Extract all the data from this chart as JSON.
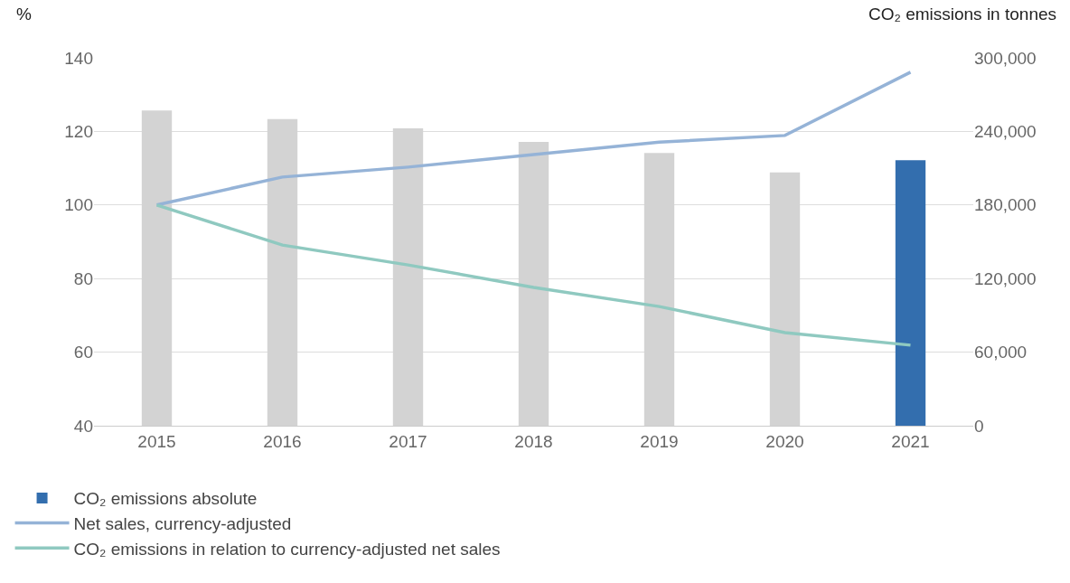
{
  "chart_data": {
    "type": "bar",
    "categories": [
      "2015",
      "2016",
      "2017",
      "2018",
      "2019",
      "2020",
      "2021"
    ],
    "ylabel": "%",
    "y2label": "CO₂ emissions in tonnes",
    "ylim": [
      40,
      140
    ],
    "yticks": [
      40,
      60,
      80,
      100,
      120,
      140
    ],
    "y2lim": [
      0,
      300000
    ],
    "y2ticks": [
      {
        "value": 0,
        "label": "0"
      },
      {
        "value": 60000,
        "label": "60,000"
      },
      {
        "value": 120000,
        "label": "120,000"
      },
      {
        "value": 180000,
        "label": "180,000"
      },
      {
        "value": 240000,
        "label": "240,000"
      },
      {
        "value": 300000,
        "label": "300,000"
      }
    ],
    "grid": "y",
    "legend": "bottom",
    "marker": "none",
    "line_style": "solid",
    "series": [
      {
        "name": "CO₂ emissions absolute",
        "axis": "y2",
        "color": "#336eae",
        "colors": [
          "#d3d3d3",
          "#d3d3d3",
          "#d3d3d3",
          "#d3d3d3",
          "#d3d3d3",
          "#d3d3d3",
          "#336eae"
        ],
        "values": [
          257000,
          250000,
          242500,
          231500,
          222500,
          206500,
          216500
        ]
      },
      {
        "name": "Net sales, currency-adjusted",
        "type": "line",
        "color": "#95b3d7",
        "values": [
          100,
          107.6,
          110.3,
          113.7,
          117.1,
          118.9,
          136.1
        ]
      },
      {
        "name": "CO₂ emissions in relation to currency-adjusted net sales",
        "type": "line",
        "color": "#8fc9c0",
        "values": [
          100,
          89.1,
          83.7,
          77.6,
          72.4,
          65.3,
          61.9
        ]
      }
    ]
  }
}
